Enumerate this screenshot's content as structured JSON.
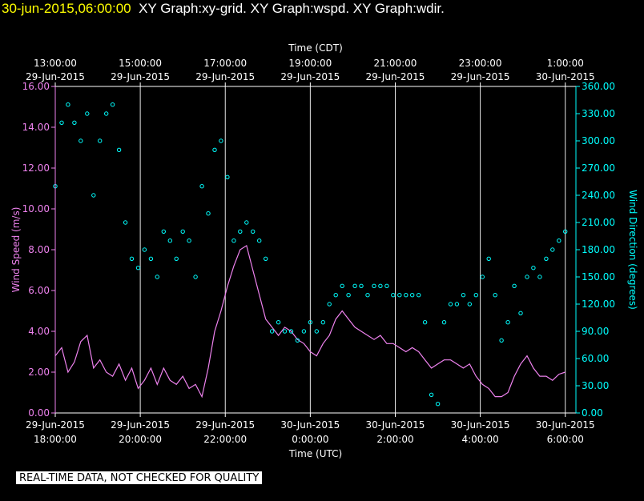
{
  "header": {
    "timestamp": "30-jun-2015,06:00:00",
    "graphs": "XY Graph:xy-grid.  XY Graph:wspd.  XY Graph:wdir."
  },
  "footer": {
    "qc_label": "REAL-TIME DATA, NOT CHECKED FOR QUALITY"
  },
  "colors": {
    "background": "#000000",
    "axes": "#ffffff",
    "speed": "#ee82ee",
    "direction": "#00ffff"
  },
  "chart_data": {
    "type": "line",
    "top_axis": {
      "label": "Time (CDT)",
      "ticks": [
        {
          "hour": 0,
          "time": "13:00:00",
          "date": "29-Jun-2015"
        },
        {
          "hour": 2,
          "time": "15:00:00",
          "date": "29-Jun-2015"
        },
        {
          "hour": 4,
          "time": "17:00:00",
          "date": "29-Jun-2015"
        },
        {
          "hour": 6,
          "time": "19:00:00",
          "date": "29-Jun-2015"
        },
        {
          "hour": 8,
          "time": "21:00:00",
          "date": "29-Jun-2015"
        },
        {
          "hour": 10,
          "time": "23:00:00",
          "date": "29-Jun-2015"
        },
        {
          "hour": 12,
          "time": "1:00:00",
          "date": "30-Jun-2015"
        }
      ]
    },
    "bottom_axis": {
      "label": "Time (UTC)",
      "ticks": [
        {
          "hour": 0,
          "date": "29-Jun-2015",
          "time": "18:00:00"
        },
        {
          "hour": 2,
          "date": "29-Jun-2015",
          "time": "20:00:00"
        },
        {
          "hour": 4,
          "date": "29-Jun-2015",
          "time": "22:00:00"
        },
        {
          "hour": 6,
          "date": "30-Jun-2015",
          "time": "0:00:00"
        },
        {
          "hour": 8,
          "date": "30-Jun-2015",
          "time": "2:00:00"
        },
        {
          "hour": 10,
          "date": "30-Jun-2015",
          "time": "4:00:00"
        },
        {
          "hour": 12,
          "date": "30-Jun-2015",
          "time": "6:00:00"
        }
      ]
    },
    "x_range_hours": [
      0,
      12.25
    ],
    "left_axis": {
      "label": "Wind Speed (m/s)",
      "range": [
        0,
        16
      ],
      "ticks": [
        "0.00",
        "2.00",
        "4.00",
        "6.00",
        "8.00",
        "10.00",
        "12.00",
        "14.00",
        "16.00"
      ]
    },
    "right_axis": {
      "label": "Wind Direction (degrees)",
      "range": [
        0,
        360
      ],
      "ticks": [
        "0.00",
        "30.00",
        "60.00",
        "90.00",
        "120.00",
        "150.00",
        "180.00",
        "210.00",
        "240.00",
        "270.00",
        "300.00",
        "330.00",
        "360.00"
      ]
    },
    "grid": "vertical",
    "series": [
      {
        "name": "wspd",
        "axis": "left",
        "style": "line",
        "x": [
          0.0,
          0.15,
          0.3,
          0.45,
          0.6,
          0.75,
          0.9,
          1.05,
          1.2,
          1.35,
          1.5,
          1.65,
          1.8,
          1.95,
          2.1,
          2.25,
          2.4,
          2.55,
          2.7,
          2.85,
          3.0,
          3.15,
          3.3,
          3.45,
          3.6,
          3.75,
          3.9,
          4.05,
          4.2,
          4.35,
          4.5,
          4.65,
          4.8,
          4.95,
          5.1,
          5.25,
          5.4,
          5.55,
          5.7,
          5.85,
          6.0,
          6.15,
          6.3,
          6.45,
          6.6,
          6.75,
          6.9,
          7.05,
          7.2,
          7.35,
          7.5,
          7.65,
          7.8,
          7.95,
          8.1,
          8.25,
          8.4,
          8.55,
          8.7,
          8.85,
          9.0,
          9.15,
          9.3,
          9.45,
          9.6,
          9.75,
          9.9,
          10.05,
          10.2,
          10.35,
          10.5,
          10.65,
          10.8,
          10.95,
          11.1,
          11.25,
          11.4,
          11.55,
          11.7,
          11.85,
          12.0
        ],
        "y": [
          2.8,
          3.2,
          2.0,
          2.5,
          3.5,
          3.8,
          2.2,
          2.6,
          2.0,
          1.8,
          2.4,
          1.6,
          2.2,
          1.2,
          1.6,
          2.2,
          1.4,
          2.2,
          1.6,
          1.4,
          1.8,
          1.2,
          1.4,
          0.8,
          2.2,
          4.0,
          5.0,
          6.2,
          7.2,
          8.0,
          8.2,
          7.0,
          5.8,
          4.6,
          4.2,
          3.8,
          4.2,
          4.0,
          3.6,
          3.4,
          3.0,
          2.8,
          3.4,
          3.8,
          4.6,
          5.0,
          4.6,
          4.2,
          4.0,
          3.8,
          3.6,
          3.8,
          3.4,
          3.4,
          3.2,
          3.0,
          3.2,
          3.0,
          2.6,
          2.2,
          2.4,
          2.6,
          2.6,
          2.4,
          2.2,
          2.4,
          1.8,
          1.4,
          1.2,
          0.8,
          0.8,
          1.0,
          1.8,
          2.4,
          2.8,
          2.2,
          1.8,
          1.8,
          1.6,
          1.9,
          2.0
        ]
      },
      {
        "name": "wdir",
        "axis": "right",
        "style": "scatter",
        "x": [
          0.0,
          0.15,
          0.3,
          0.45,
          0.6,
          0.75,
          0.9,
          1.05,
          1.2,
          1.35,
          1.5,
          1.65,
          1.8,
          1.95,
          2.1,
          2.25,
          2.4,
          2.55,
          2.7,
          2.85,
          3.0,
          3.15,
          3.3,
          3.45,
          3.6,
          3.75,
          3.9,
          4.05,
          4.2,
          4.35,
          4.5,
          4.65,
          4.8,
          4.95,
          5.1,
          5.25,
          5.4,
          5.55,
          5.7,
          5.85,
          6.0,
          6.15,
          6.3,
          6.45,
          6.6,
          6.75,
          6.9,
          7.05,
          7.2,
          7.35,
          7.5,
          7.65,
          7.8,
          7.95,
          8.1,
          8.25,
          8.4,
          8.55,
          8.7,
          8.85,
          9.0,
          9.15,
          9.3,
          9.45,
          9.6,
          9.75,
          9.9,
          10.05,
          10.2,
          10.35,
          10.5,
          10.65,
          10.8,
          10.95,
          11.1,
          11.25,
          11.4,
          11.55,
          11.7,
          11.85,
          12.0
        ],
        "y": [
          250,
          320,
          340,
          320,
          300,
          330,
          240,
          300,
          330,
          340,
          290,
          210,
          170,
          160,
          180,
          170,
          150,
          200,
          190,
          170,
          200,
          190,
          150,
          250,
          220,
          290,
          300,
          260,
          190,
          200,
          210,
          200,
          190,
          170,
          90,
          100,
          90,
          90,
          80,
          90,
          100,
          90,
          100,
          120,
          130,
          140,
          130,
          140,
          140,
          130,
          140,
          140,
          140,
          130,
          130,
          130,
          130,
          130,
          100,
          20,
          10,
          100,
          120,
          120,
          130,
          120,
          130,
          150,
          170,
          130,
          80,
          100,
          140,
          110,
          150,
          160,
          150,
          170,
          180,
          190,
          200
        ]
      }
    ]
  }
}
